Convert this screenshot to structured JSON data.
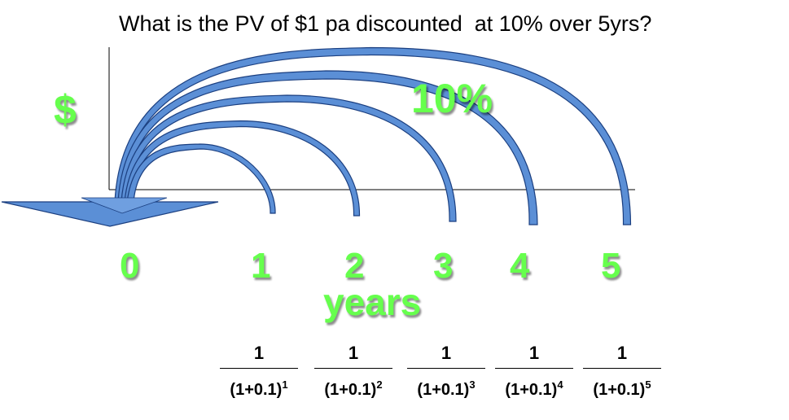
{
  "title": "What is the PV of $1 pa discounted  at 10% over 5yrs?",
  "y_axis_label": "$",
  "rate_label": "10%",
  "x_axis_label": "years",
  "ticks": [
    "0",
    "1",
    "2",
    "3",
    "4",
    "5"
  ],
  "fractions": [
    {
      "numerator": "1",
      "base": "(1+0.1)",
      "exponent": "1"
    },
    {
      "numerator": "1",
      "base": "(1+0.1)",
      "exponent": "2"
    },
    {
      "numerator": "1",
      "base": "(1+0.1)",
      "exponent": "3"
    },
    {
      "numerator": "1",
      "base": "(1+0.1)",
      "exponent": "4"
    },
    {
      "numerator": "1",
      "base": "(1+0.1)",
      "exponent": "5"
    }
  ],
  "colors": {
    "label_green": "#66ff4d",
    "arc_fill": "#5b8fd6",
    "arc_stroke": "#1b3f80",
    "axis": "#000000"
  },
  "icons": {
    "arrow": "down-pointing-triangle-arrow"
  }
}
